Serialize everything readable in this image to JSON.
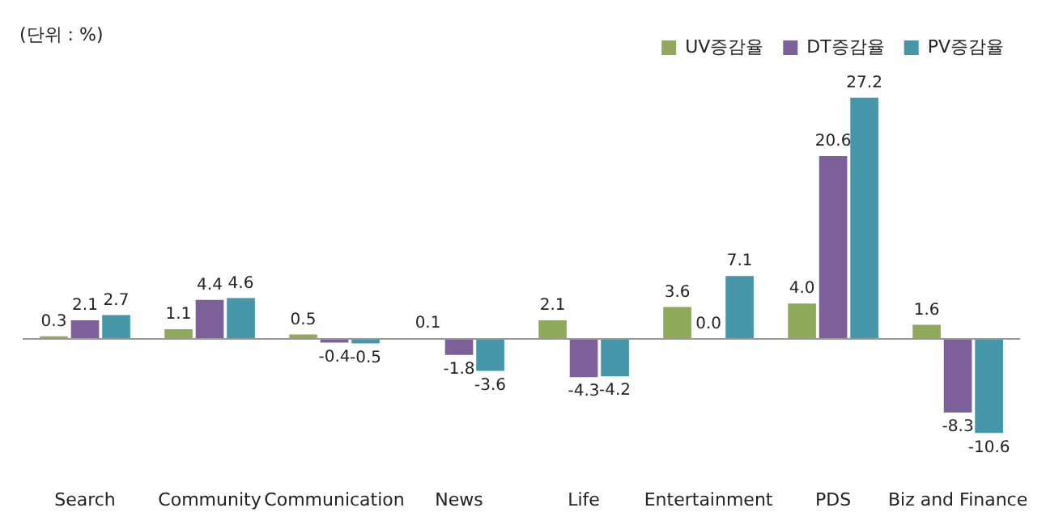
{
  "chart_data": {
    "type": "bar",
    "categories": [
      "Search",
      "Community",
      "Communication",
      "News",
      "Life",
      "Entertainment",
      "PDS",
      "Biz and Finance"
    ],
    "series": [
      {
        "name": "UV증감율",
        "color": "#8faa5a",
        "values": [
          0.3,
          1.1,
          0.5,
          0.1,
          2.1,
          3.6,
          4.0,
          1.6
        ],
        "value_labels": [
          "0.3",
          "1.1",
          "0.5",
          "0.1",
          "2.1",
          "3.6",
          "4.0",
          "1.6"
        ]
      },
      {
        "name": "DT증감율",
        "color": "#7d5f9a",
        "values": [
          2.1,
          4.4,
          -0.4,
          -1.8,
          -4.3,
          0.0,
          20.6,
          -8.3
        ],
        "value_labels": [
          "2.1",
          "4.4",
          "-0.4",
          "-1.8",
          "-4.3",
          "0.0",
          "20.6",
          "-8.3"
        ]
      },
      {
        "name": "PV증감율",
        "color": "#4596a8",
        "values": [
          2.7,
          4.6,
          -0.5,
          -3.6,
          -4.2,
          7.1,
          27.2,
          -10.6
        ],
        "value_labels": [
          "2.7",
          "4.6",
          "-0.5",
          "-3.6",
          "-4.2",
          "7.1",
          "27.2",
          "-10.6"
        ]
      }
    ],
    "annotations": [
      "(단위 : %)"
    ],
    "legend": "top right",
    "tick_labels": "x"
  }
}
